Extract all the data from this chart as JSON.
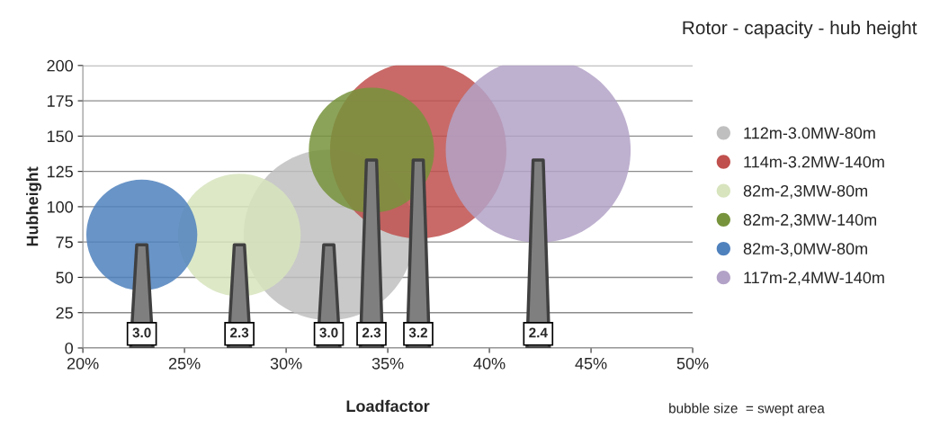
{
  "chart_data": {
    "type": "bubble",
    "title": "Rotor - capacity - hub height",
    "xlabel": "Loadfactor",
    "ylabel": "Hubheight",
    "xlim": [
      20,
      50
    ],
    "xticks": [
      {
        "value": 20,
        "label": "20%"
      },
      {
        "value": 25,
        "label": "25%"
      },
      {
        "value": 30,
        "label": "30%"
      },
      {
        "value": 35,
        "label": "35%"
      },
      {
        "value": 40,
        "label": "40%"
      },
      {
        "value": 45,
        "label": "45%"
      },
      {
        "value": 50,
        "label": "50%"
      }
    ],
    "ylim": [
      0,
      200
    ],
    "yticks": [
      0,
      25,
      50,
      75,
      100,
      125,
      150,
      175,
      200
    ],
    "grid": "y",
    "legend": "right",
    "series": [
      {
        "name": "112m-3.0MW-80m",
        "color": "#bfbfbf",
        "x": [
          32.1
        ],
        "values": [
          80
        ],
        "sizes": [
          0.85
        ]
      },
      {
        "name": "114m-3.2MW-140m",
        "color": "#c0504d",
        "x": [
          36.5
        ],
        "values": [
          140
        ],
        "sizes": [
          0.91
        ]
      },
      {
        "name": "82m-2,3MW-80m",
        "color": "#d7e4bd",
        "x": [
          27.7
        ],
        "values": [
          80
        ],
        "sizes": [
          0.44
        ]
      },
      {
        "name": "82m-2,3MW-140m",
        "color": "#77933c",
        "x": [
          34.2
        ],
        "values": [
          140
        ],
        "sizes": [
          0.46
        ]
      },
      {
        "name": "82m-3,0MW-80m",
        "color": "#4f81bd",
        "x": [
          22.9
        ],
        "values": [
          80
        ],
        "sizes": [
          0.36
        ]
      },
      {
        "name": "117m-2,4MW-140m",
        "color": "#b3a2c7",
        "x": [
          42.4
        ],
        "values": [
          140
        ],
        "sizes": [
          1.0
        ]
      }
    ],
    "annotations": [
      "3.0",
      "2.3",
      "3.0",
      "2.3",
      "3.2",
      "2.4",
      "bubble size  = swept area"
    ]
  }
}
